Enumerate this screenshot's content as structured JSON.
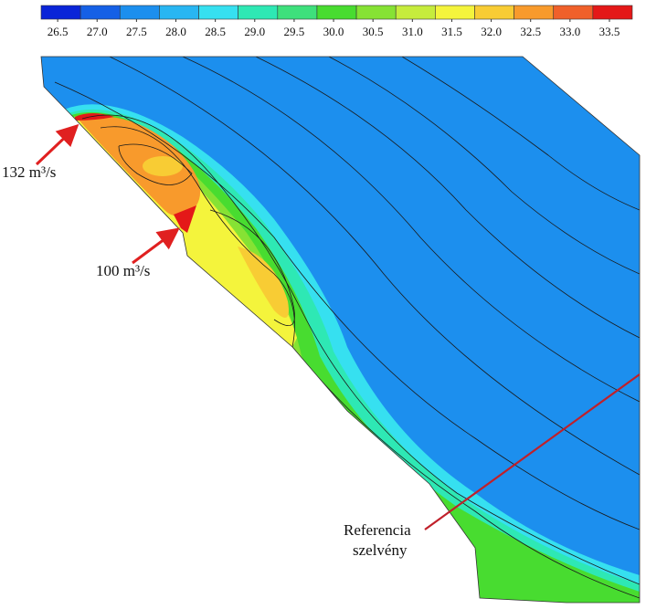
{
  "chart_data": {
    "type": "contour",
    "colorbar": {
      "colors": [
        "#0a24d8",
        "#1560e6",
        "#1c8fee",
        "#28b6f2",
        "#36e0f0",
        "#2ee8b4",
        "#3ee07c",
        "#48dc30",
        "#86e234",
        "#c6ec3c",
        "#f4f43c",
        "#f8cc34",
        "#f89a2c",
        "#f0602a",
        "#e41818"
      ],
      "ticks": [
        26.5,
        {
          "value": 27,
          "label": "27.0"
        },
        27.5,
        {
          "value": 28,
          "label": "28.0"
        },
        28.5,
        {
          "value": 29,
          "label": "29.0"
        },
        29.5,
        {
          "value": 30,
          "label": "30.0"
        },
        30.5,
        {
          "value": 31,
          "label": "31.0"
        },
        31.5,
        {
          "value": 32,
          "label": "32.0"
        },
        32.5,
        {
          "value": 33,
          "label": "33.0"
        },
        33.5
      ]
    },
    "annotations": {
      "inflow_1": "132 m³/s",
      "inflow_2": "100 m³/s",
      "reference_line": [
        "Referencia",
        "szelvény"
      ]
    }
  }
}
